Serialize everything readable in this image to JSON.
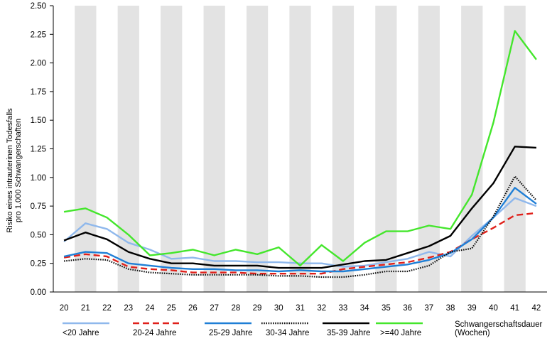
{
  "chart_data": {
    "type": "line",
    "title": "",
    "ylabel": "Risiko eines intrauterinen Todesfalls pro 1.000 Schwangerschaften",
    "ylabel_lines": [
      "Risiko eines intrauterinen Todesfalls",
      "pro 1.000 Schwangerschaften"
    ],
    "xlabel": "Schwangerschaftsdauer (Wochen)",
    "xlabel_lines": [
      "Schwangerschaftsdauer",
      "(Wochen)"
    ],
    "ylim": [
      0,
      2.5
    ],
    "yticks": [
      "0.00",
      "0.25",
      "0.50",
      "0.75",
      "1.00",
      "1.25",
      "1.50",
      "1.75",
      "2.00",
      "2.25",
      "2.50"
    ],
    "x": [
      20,
      21,
      22,
      23,
      24,
      25,
      26,
      27,
      28,
      29,
      30,
      31,
      32,
      33,
      34,
      35,
      36,
      37,
      38,
      39,
      40,
      41,
      42
    ],
    "xtick_labels": [
      "20",
      "21",
      "22",
      "23",
      "24",
      "25",
      "26",
      "27",
      "28",
      "29",
      "30",
      "31",
      "32",
      "33",
      "34",
      "35",
      "36",
      "37",
      "38",
      "39",
      "40",
      "41",
      "42"
    ],
    "grid": "alternating vertical grey bands",
    "legend_position": "bottom",
    "series": [
      {
        "name": "<20 Jahre",
        "color": "#8fb8ec",
        "dash": "solid",
        "values": [
          0.44,
          0.6,
          0.55,
          0.43,
          0.37,
          0.29,
          0.3,
          0.27,
          0.27,
          0.26,
          0.26,
          0.25,
          0.25,
          0.22,
          0.23,
          0.26,
          0.29,
          0.35,
          0.31,
          0.49,
          0.65,
          0.82,
          0.75
        ]
      },
      {
        "name": "20-24 Jahre",
        "color": "#e0201a",
        "dash": "dashed",
        "values": [
          0.3,
          0.33,
          0.31,
          0.22,
          0.2,
          0.19,
          0.17,
          0.17,
          0.17,
          0.16,
          0.16,
          0.16,
          0.16,
          0.2,
          0.22,
          0.24,
          0.26,
          0.3,
          0.35,
          0.46,
          0.56,
          0.67,
          0.69
        ]
      },
      {
        "name": "25-29 Jahre",
        "color": "#1f7fd6",
        "dash": "solid",
        "values": [
          0.31,
          0.35,
          0.34,
          0.25,
          0.23,
          0.21,
          0.2,
          0.2,
          0.19,
          0.19,
          0.18,
          0.19,
          0.18,
          0.18,
          0.2,
          0.22,
          0.24,
          0.28,
          0.34,
          0.46,
          0.65,
          0.91,
          0.77
        ]
      },
      {
        "name": "30-34 Jahre",
        "color": "#111111",
        "dash": "dotted",
        "values": [
          0.27,
          0.29,
          0.28,
          0.2,
          0.17,
          0.16,
          0.15,
          0.15,
          0.15,
          0.15,
          0.14,
          0.14,
          0.13,
          0.13,
          0.15,
          0.18,
          0.18,
          0.23,
          0.35,
          0.38,
          0.66,
          1.01,
          0.8
        ]
      },
      {
        "name": "35-39 Jahre",
        "color": "#000000",
        "dash": "solid",
        "values": [
          0.45,
          0.52,
          0.46,
          0.35,
          0.29,
          0.25,
          0.25,
          0.23,
          0.23,
          0.23,
          0.21,
          0.21,
          0.21,
          0.24,
          0.27,
          0.28,
          0.34,
          0.4,
          0.49,
          0.73,
          0.95,
          1.27,
          1.26
        ]
      },
      {
        "name": ">=40 Jahre",
        "color": "#44e62c",
        "dash": "solid",
        "values": [
          0.7,
          0.73,
          0.65,
          0.5,
          0.32,
          0.34,
          0.37,
          0.32,
          0.37,
          0.33,
          0.39,
          0.23,
          0.41,
          0.27,
          0.43,
          0.53,
          0.53,
          0.58,
          0.55,
          0.85,
          1.48,
          2.28,
          2.03
        ]
      }
    ]
  }
}
